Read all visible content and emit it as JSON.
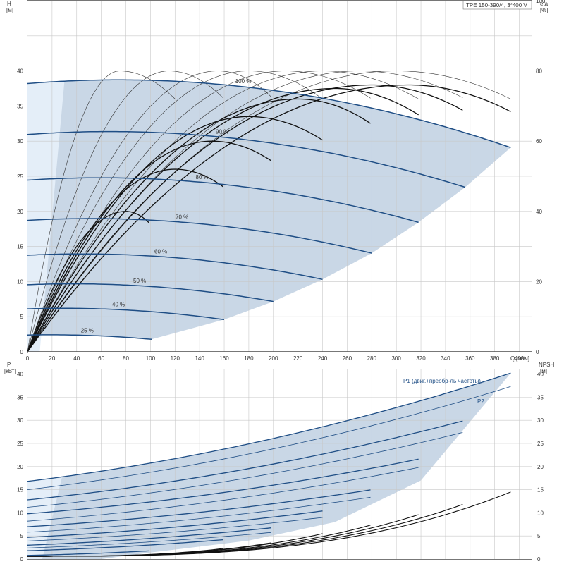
{
  "chart_data": [
    {
      "type": "line",
      "title": "TPE 150-390/4, 3*400 V",
      "ylabel": "H",
      "yunit": "[м]",
      "y2label": "eta",
      "y2unit": "[%]",
      "xlabel": "Q",
      "xunit": "[м³/ч]",
      "xlim": [
        0,
        410
      ],
      "ylim": [
        0,
        50
      ],
      "y2lim": [
        0,
        100
      ],
      "xticks": [
        0,
        20,
        40,
        60,
        80,
        100,
        120,
        140,
        160,
        180,
        200,
        220,
        240,
        260,
        280,
        300,
        320,
        340,
        360,
        380,
        400
      ],
      "yticks": [
        0,
        5,
        10,
        15,
        20,
        25,
        30,
        35,
        40
      ],
      "y2ticks": [
        0,
        20,
        40,
        60,
        80,
        100
      ],
      "grid": true,
      "hq_curves": [
        {
          "label": "100 %",
          "speed": 1.0,
          "qmax": 393
        },
        {
          "label": "90 %",
          "speed": 0.9,
          "qmax": 356
        },
        {
          "label": "80 %",
          "speed": 0.8,
          "qmax": 318
        },
        {
          "label": "70 %",
          "speed": 0.7,
          "qmax": 280
        },
        {
          "label": "60 %",
          "speed": 0.6,
          "qmax": 240
        },
        {
          "label": "50 %",
          "speed": 0.5,
          "qmax": 200
        },
        {
          "label": "40 %",
          "speed": 0.4,
          "qmax": 160
        },
        {
          "label": "25 %",
          "speed": 0.25,
          "qmax": 101
        }
      ],
      "hq_model": {
        "h0": 38.2,
        "a": 0.0141,
        "b": 9.49e-05
      },
      "eta_curves": [
        {
          "qmax": 393,
          "peak_q": 300,
          "peak": 80
        },
        {
          "qmax": 356,
          "peak_q": 270,
          "peak": 80
        },
        {
          "qmax": 318,
          "peak_q": 240,
          "peak": 80
        },
        {
          "qmax": 280,
          "peak_q": 210,
          "peak": 80
        },
        {
          "qmax": 240,
          "peak_q": 180,
          "peak": 80
        },
        {
          "qmax": 200,
          "peak_q": 155,
          "peak": 80
        },
        {
          "qmax": 160,
          "peak_q": 115,
          "peak": 80
        },
        {
          "qmax": 120,
          "peak_q": 75,
          "peak": 80
        }
      ],
      "eta_bold_curves": [
        {
          "qmax": 393,
          "peak_q": 310,
          "peak": 76
        },
        {
          "qmax": 356,
          "peak_q": 280,
          "peak": 76
        },
        {
          "qmax": 318,
          "peak_q": 250,
          "peak": 75
        },
        {
          "qmax": 280,
          "peak_q": 220,
          "peak": 72
        },
        {
          "qmax": 240,
          "peak_q": 180,
          "peak": 67
        },
        {
          "qmax": 200,
          "peak_q": 150,
          "peak": 60
        },
        {
          "qmax": 160,
          "peak_q": 120,
          "peak": 52
        },
        {
          "qmax": 101,
          "peak_q": 80,
          "peak": 40
        }
      ]
    },
    {
      "type": "line",
      "ylabel": "P",
      "yunit": "[кВт]",
      "y2label": "NPSH",
      "y2unit": "[м]",
      "xlim": [
        0,
        410
      ],
      "ylim": [
        0,
        41
      ],
      "y2lim": [
        0,
        41
      ],
      "yticks": [
        0,
        5,
        10,
        15,
        20,
        25,
        30,
        35,
        40
      ],
      "y2ticks": [
        0,
        5,
        10,
        15,
        20,
        25,
        30,
        35,
        40
      ],
      "grid": true,
      "series_labels": {
        "p1": "P1 (двиг.+преобр-ль частоты)",
        "p2": "P2"
      },
      "p1_curves": [
        {
          "qmax": 393,
          "p_start": 16.8,
          "p_end": 40.2
        },
        {
          "qmax": 356,
          "p_start": 12.8,
          "p_end": 30.0
        },
        {
          "qmax": 318,
          "p_start": 9.8,
          "p_end": 21.6
        },
        {
          "qmax": 280,
          "p_start": 7.0,
          "p_end": 15.0
        },
        {
          "qmax": 240,
          "p_start": 4.7,
          "p_end": 10.4
        },
        {
          "qmax": 200,
          "p_start": 3.0,
          "p_end": 6.8
        },
        {
          "qmax": 160,
          "p_start": 1.8,
          "p_end": 4.2
        },
        {
          "qmax": 101,
          "p_start": 0.8,
          "p_end": 1.8
        }
      ],
      "p2_curves": [
        {
          "qmax": 393,
          "p_start": 15.0,
          "p_end": 37.3
        },
        {
          "qmax": 356,
          "p_start": 11.2,
          "p_end": 27.5
        },
        {
          "qmax": 318,
          "p_start": 8.2,
          "p_end": 19.8
        },
        {
          "qmax": 280,
          "p_start": 5.8,
          "p_end": 13.4
        },
        {
          "qmax": 240,
          "p_start": 3.9,
          "p_end": 9.0
        },
        {
          "qmax": 200,
          "p_start": 2.4,
          "p_end": 5.8
        }
      ],
      "npsh_curves": [
        {
          "qmax": 393,
          "npsh_end": 14.5
        },
        {
          "qmax": 356,
          "npsh_end": 12.0
        },
        {
          "qmax": 318,
          "npsh_end": 9.6
        },
        {
          "qmax": 280,
          "npsh_end": 7.4
        },
        {
          "qmax": 240,
          "npsh_end": 5.5
        },
        {
          "qmax": 200,
          "npsh_end": 3.6
        },
        {
          "qmax": 160,
          "npsh_end": 2.3
        }
      ]
    }
  ],
  "colors": {
    "envelope": "#c9d7e6",
    "envelope_light": "#e4eef8",
    "hq": "#1f4e85",
    "power": "#1f4e85",
    "eta": "#333333",
    "npsh": "#111111"
  }
}
